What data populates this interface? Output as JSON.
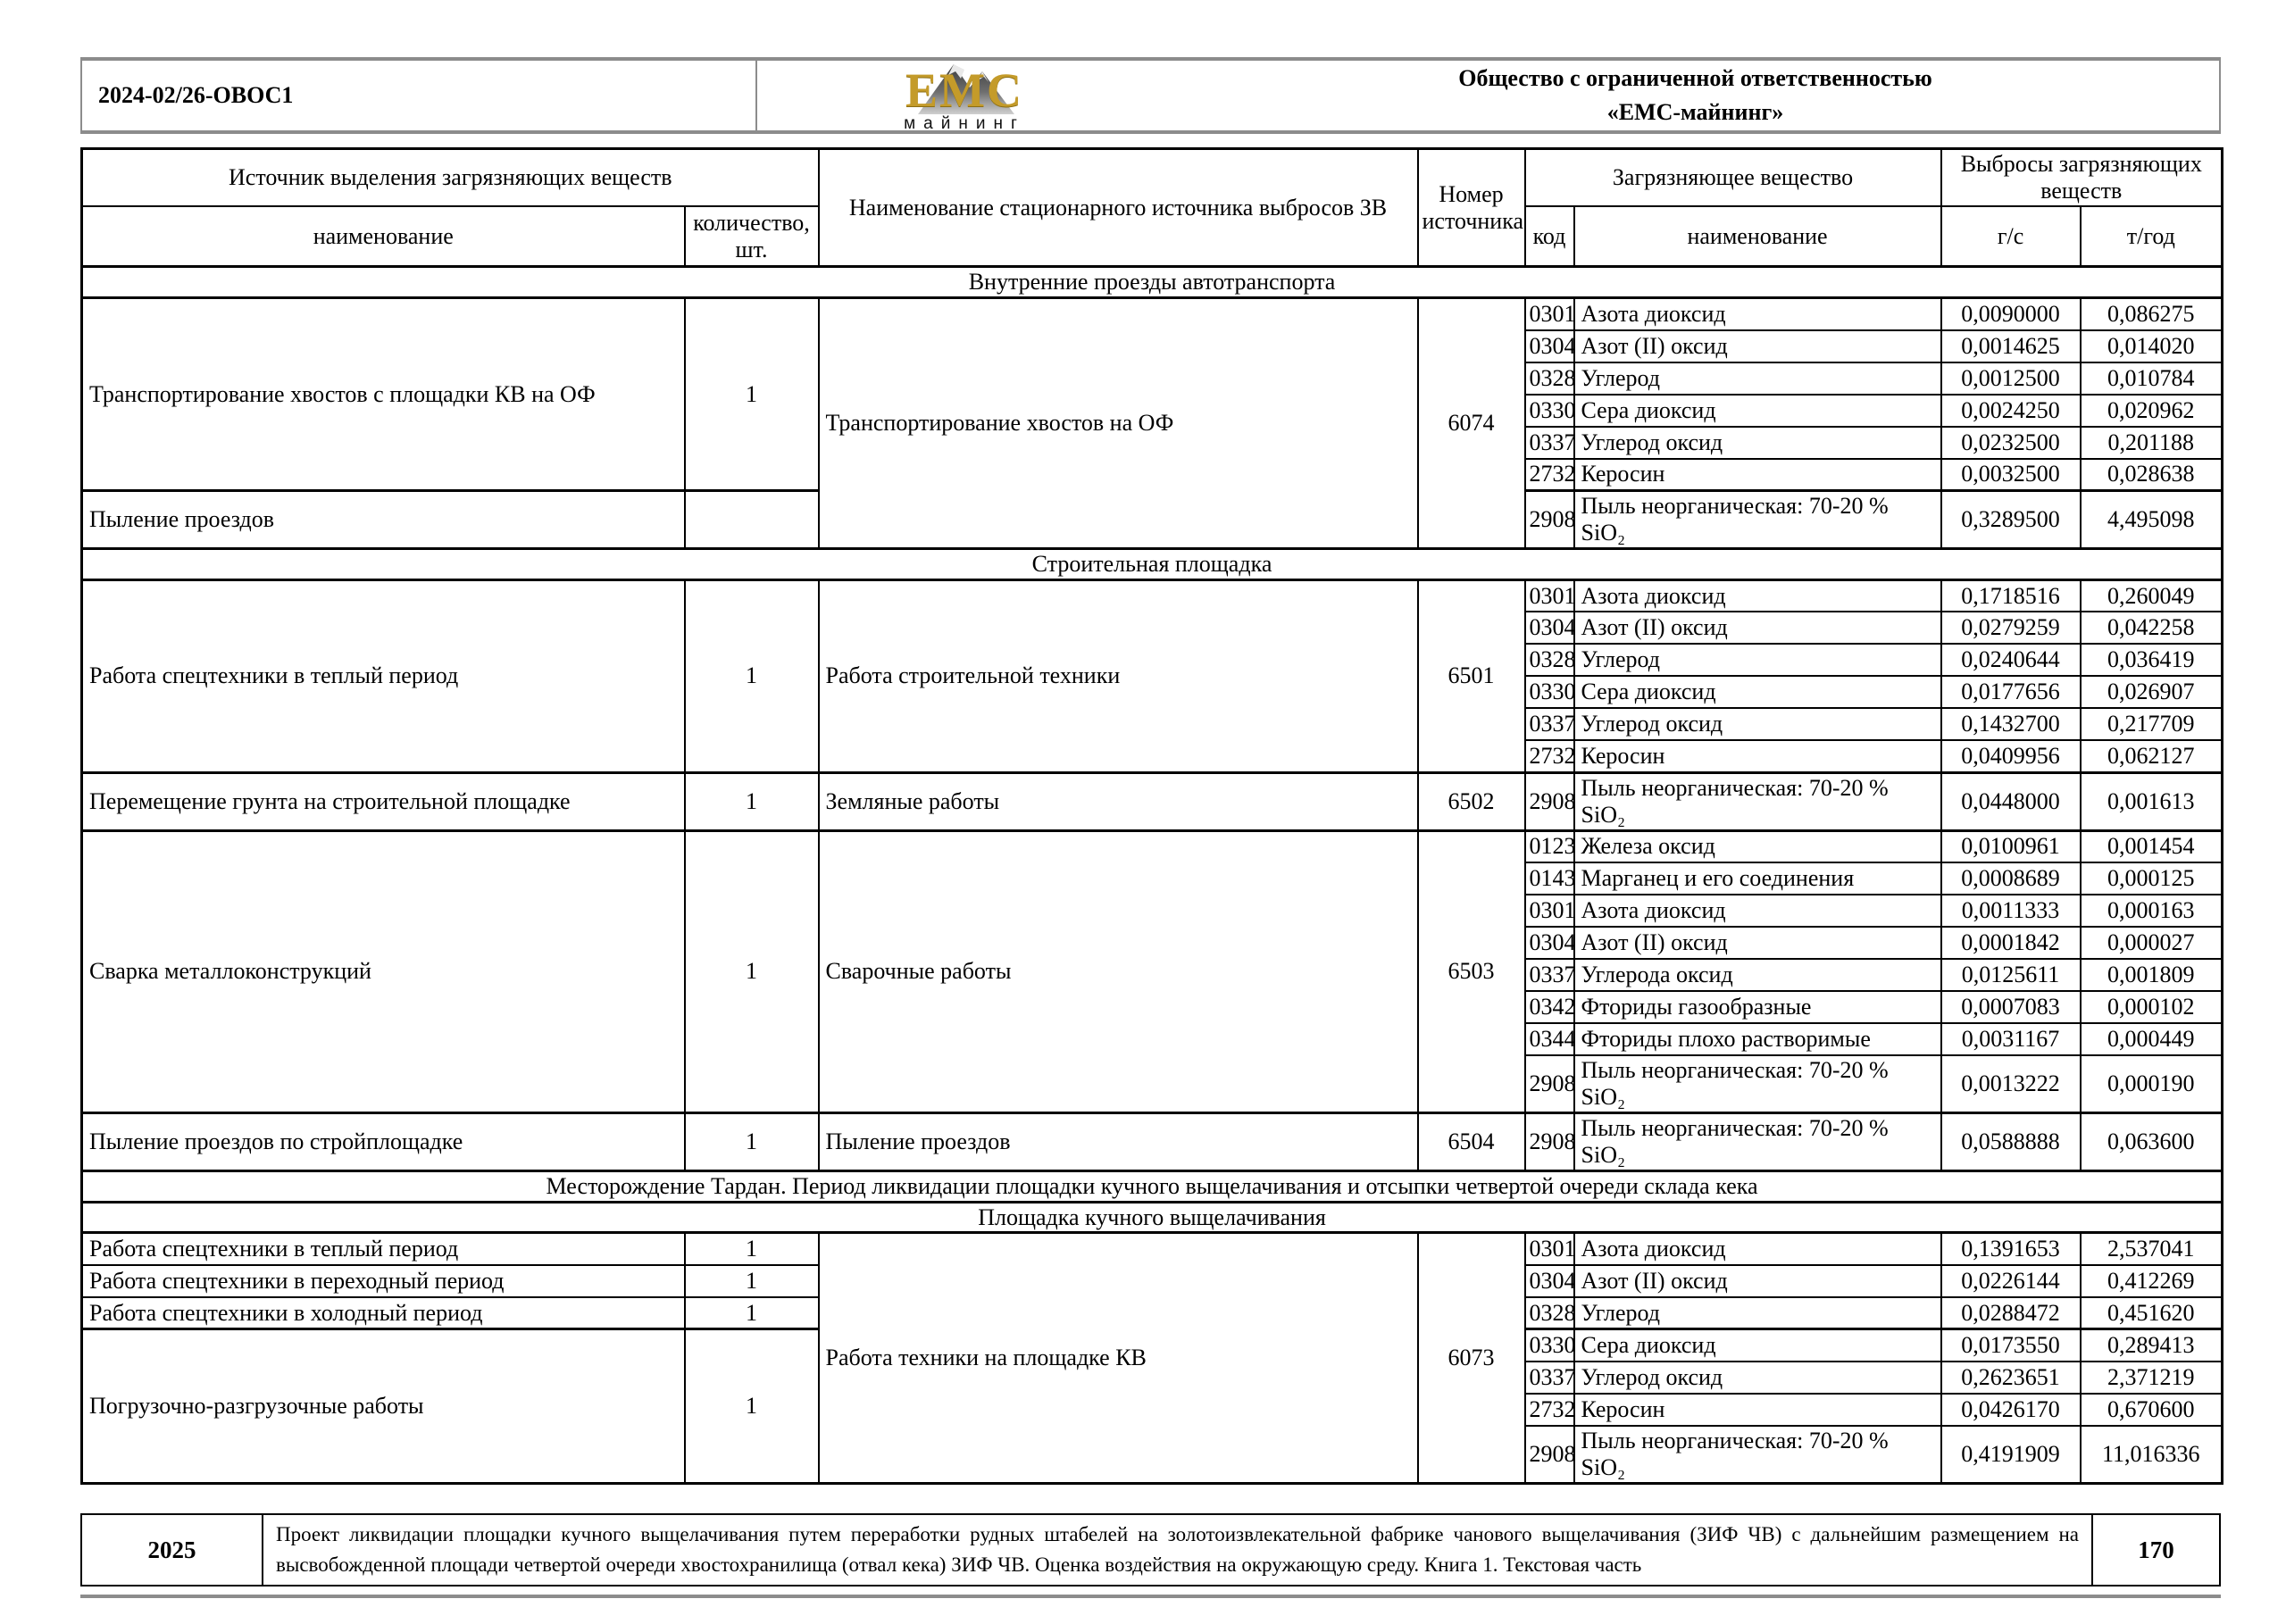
{
  "colors": {
    "logo-gold": "#C49B2A",
    "header-border": "#8C8C8C",
    "table-border": "#000000"
  },
  "header": {
    "doc_code": "2024-02/26-ОВОС1",
    "company_line1": "Общество с ограниченной ответственностью",
    "company_line2": "«ЕМС-майнинг»",
    "logo_text": "ЕМС",
    "logo_subtext": "майнинг"
  },
  "table": {
    "headers": {
      "source_group": "Источник выделения загрязняющих веществ",
      "source_name": "наименование",
      "source_count": "количество, шт.",
      "stationary": "Наименование стационарного источника выбросов ЗВ",
      "number": "Номер источника",
      "pollutant_group": "Загрязняющее вещество",
      "code": "код",
      "pollutant_name": "наименование",
      "emissions_group": "Выбросы загрязняющих веществ",
      "gs": "г/с",
      "tyear": "т/год"
    },
    "body_rows": [
      {
        "type": "section",
        "label": "Внутренние проезды автотранспорта"
      },
      {
        "type": "data",
        "cells": [
          {
            "t": "Транспортирование хвостов с площадки КВ на ОФ",
            "rs": 6,
            "cls": "left"
          },
          {
            "t": "1",
            "rs": 6
          },
          {
            "t": "Транспортирование хвостов на ОФ",
            "rs": 7,
            "cls": "left"
          },
          {
            "t": "6074",
            "rs": 7
          },
          {
            "t": "0301"
          },
          {
            "t": "Азота диоксид",
            "cls": "left"
          },
          {
            "t": "0,0090000"
          },
          {
            "t": "0,086275"
          }
        ]
      },
      {
        "type": "data",
        "cells": [
          {
            "t": "0304"
          },
          {
            "t": "Азот (II) оксид",
            "cls": "left"
          },
          {
            "t": "0,0014625"
          },
          {
            "t": "0,014020"
          }
        ]
      },
      {
        "type": "data",
        "cells": [
          {
            "t": "0328"
          },
          {
            "t": "Углерод",
            "cls": "left"
          },
          {
            "t": "0,0012500"
          },
          {
            "t": "0,010784"
          }
        ]
      },
      {
        "type": "data",
        "cells": [
          {
            "t": "0330"
          },
          {
            "t": "Сера диоксид",
            "cls": "left"
          },
          {
            "t": "0,0024250"
          },
          {
            "t": "0,020962"
          }
        ]
      },
      {
        "type": "data",
        "cells": [
          {
            "t": "0337"
          },
          {
            "t": "Углерод оксид",
            "cls": "left"
          },
          {
            "t": "0,0232500"
          },
          {
            "t": "0,201188"
          }
        ]
      },
      {
        "type": "data",
        "cells": [
          {
            "t": "2732"
          },
          {
            "t": "Керосин",
            "cls": "left"
          },
          {
            "t": "0,0032500"
          },
          {
            "t": "0,028638"
          }
        ]
      },
      {
        "type": "data",
        "hv": true,
        "cells": [
          {
            "t": "Пыление проездов",
            "cls": "left"
          },
          {
            "t": ""
          },
          {
            "t": "2908"
          },
          {
            "t": "Пыль неорганическая: 70-20 % SiO₂",
            "cls": "left"
          },
          {
            "t": "0,3289500"
          },
          {
            "t": "4,495098"
          }
        ]
      },
      {
        "type": "section",
        "label": "Строительная площадка"
      },
      {
        "type": "data",
        "cells": [
          {
            "t": "Работа спецтехники в теплый период",
            "rs": 6,
            "cls": "left"
          },
          {
            "t": "1",
            "rs": 6
          },
          {
            "t": "Работа строительной техники",
            "rs": 6,
            "cls": "left"
          },
          {
            "t": "6501",
            "rs": 6
          },
          {
            "t": "0301"
          },
          {
            "t": "Азота диоксид",
            "cls": "left"
          },
          {
            "t": "0,1718516"
          },
          {
            "t": "0,260049"
          }
        ]
      },
      {
        "type": "data",
        "cells": [
          {
            "t": "0304"
          },
          {
            "t": "Азот (II) оксид",
            "cls": "left"
          },
          {
            "t": "0,0279259"
          },
          {
            "t": "0,042258"
          }
        ]
      },
      {
        "type": "data",
        "cells": [
          {
            "t": "0328"
          },
          {
            "t": "Углерод",
            "cls": "left"
          },
          {
            "t": "0,0240644"
          },
          {
            "t": "0,036419"
          }
        ]
      },
      {
        "type": "data",
        "cells": [
          {
            "t": "0330"
          },
          {
            "t": "Сера диоксид",
            "cls": "left"
          },
          {
            "t": "0,0177656"
          },
          {
            "t": "0,026907"
          }
        ]
      },
      {
        "type": "data",
        "cells": [
          {
            "t": "0337"
          },
          {
            "t": "Углерод оксид",
            "cls": "left"
          },
          {
            "t": "0,1432700"
          },
          {
            "t": "0,217709"
          }
        ]
      },
      {
        "type": "data",
        "cells": [
          {
            "t": "2732"
          },
          {
            "t": "Керосин",
            "cls": "left"
          },
          {
            "t": "0,0409956"
          },
          {
            "t": "0,062127"
          }
        ]
      },
      {
        "type": "data",
        "hv": true,
        "cells": [
          {
            "t": "Перемещение грунта на строительной площадке",
            "cls": "left"
          },
          {
            "t": "1"
          },
          {
            "t": "Земляные работы",
            "cls": "left"
          },
          {
            "t": "6502"
          },
          {
            "t": "2908"
          },
          {
            "t": "Пыль неорганическая: 70-20 % SiO₂",
            "cls": "left"
          },
          {
            "t": "0,0448000"
          },
          {
            "t": "0,001613"
          }
        ]
      },
      {
        "type": "data",
        "hv": true,
        "cells": [
          {
            "t": "Сварка металлоконструкций",
            "rs": 8,
            "cls": "left"
          },
          {
            "t": "1",
            "rs": 8
          },
          {
            "t": "Сварочные работы",
            "rs": 8,
            "cls": "left"
          },
          {
            "t": "6503",
            "rs": 8
          },
          {
            "t": "0123"
          },
          {
            "t": "Железа оксид",
            "cls": "left"
          },
          {
            "t": "0,0100961"
          },
          {
            "t": "0,001454"
          }
        ]
      },
      {
        "type": "data",
        "cells": [
          {
            "t": "0143"
          },
          {
            "t": "Марганец и его соединения",
            "cls": "left"
          },
          {
            "t": "0,0008689"
          },
          {
            "t": "0,000125"
          }
        ]
      },
      {
        "type": "data",
        "cells": [
          {
            "t": "0301"
          },
          {
            "t": "Азота диоксид",
            "cls": "left"
          },
          {
            "t": "0,0011333"
          },
          {
            "t": "0,000163"
          }
        ]
      },
      {
        "type": "data",
        "cells": [
          {
            "t": "0304"
          },
          {
            "t": "Азот (II) оксид",
            "cls": "left"
          },
          {
            "t": "0,0001842"
          },
          {
            "t": "0,000027"
          }
        ]
      },
      {
        "type": "data",
        "cells": [
          {
            "t": "0337"
          },
          {
            "t": "Углерода оксид",
            "cls": "left"
          },
          {
            "t": "0,0125611"
          },
          {
            "t": "0,001809"
          }
        ]
      },
      {
        "type": "data",
        "cells": [
          {
            "t": "0342"
          },
          {
            "t": "Фториды газообразные",
            "cls": "left"
          },
          {
            "t": "0,0007083"
          },
          {
            "t": "0,000102"
          }
        ]
      },
      {
        "type": "data",
        "cells": [
          {
            "t": "0344"
          },
          {
            "t": "Фториды плохо растворимые",
            "cls": "left"
          },
          {
            "t": "0,0031167"
          },
          {
            "t": "0,000449"
          }
        ]
      },
      {
        "type": "data",
        "cells": [
          {
            "t": "2908"
          },
          {
            "t": "Пыль неорганическая: 70-20 % SiO₂",
            "cls": "left"
          },
          {
            "t": "0,0013222"
          },
          {
            "t": "0,000190"
          }
        ]
      },
      {
        "type": "data",
        "hv": true,
        "cells": [
          {
            "t": "Пыление проездов по стройплощадке",
            "cls": "left"
          },
          {
            "t": "1"
          },
          {
            "t": "Пыление проездов",
            "cls": "left"
          },
          {
            "t": "6504"
          },
          {
            "t": "2908"
          },
          {
            "t": "Пыль неорганическая: 70-20 % SiO₂",
            "cls": "left"
          },
          {
            "t": "0,0588888"
          },
          {
            "t": "0,063600"
          }
        ]
      },
      {
        "type": "section",
        "label": "Месторождение Тардан. Период ликвидации площадки кучного выщелачивания и отсыпки четвертой очереди склада кека"
      },
      {
        "type": "section",
        "label": "Площадка кучного выщелачивания"
      },
      {
        "type": "data",
        "cells": [
          {
            "t": "Работа спецтехники в теплый период",
            "cls": "left"
          },
          {
            "t": "1"
          },
          {
            "t": "Работа техники на площадке КВ",
            "rs": 7,
            "cls": "left"
          },
          {
            "t": "6073",
            "rs": 7
          },
          {
            "t": "0301"
          },
          {
            "t": "Азота диоксид",
            "cls": "left"
          },
          {
            "t": "0,1391653"
          },
          {
            "t": "2,537041"
          }
        ]
      },
      {
        "type": "data",
        "cells": [
          {
            "t": "Работа спецтехники в переходный период",
            "cls": "left"
          },
          {
            "t": "1"
          },
          {
            "t": "0304"
          },
          {
            "t": "Азот (II) оксид",
            "cls": "left"
          },
          {
            "t": "0,0226144"
          },
          {
            "t": "0,412269"
          }
        ]
      },
      {
        "type": "data",
        "cells": [
          {
            "t": "Работа спецтехники в холодный период",
            "cls": "left"
          },
          {
            "t": "1"
          },
          {
            "t": "0328"
          },
          {
            "t": "Углерод",
            "cls": "left"
          },
          {
            "t": "0,0288472"
          },
          {
            "t": "0,451620"
          }
        ]
      },
      {
        "type": "data",
        "hv": true,
        "cells": [
          {
            "t": "Погрузочно-разгрузочные работы",
            "rs": 4,
            "cls": "left"
          },
          {
            "t": "1",
            "rs": 4
          },
          {
            "t": "0330"
          },
          {
            "t": "Сера диоксид",
            "cls": "left"
          },
          {
            "t": "0,0173550"
          },
          {
            "t": "0,289413"
          }
        ]
      },
      {
        "type": "data",
        "cells": [
          {
            "t": "0337"
          },
          {
            "t": "Углерод оксид",
            "cls": "left"
          },
          {
            "t": "0,2623651"
          },
          {
            "t": "2,371219"
          }
        ]
      },
      {
        "type": "data",
        "cells": [
          {
            "t": "2732"
          },
          {
            "t": "Керосин",
            "cls": "left"
          },
          {
            "t": "0,0426170"
          },
          {
            "t": "0,670600"
          }
        ]
      },
      {
        "type": "data",
        "cells": [
          {
            "t": "2908"
          },
          {
            "t": "Пыль неорганическая: 70-20 % SiO₂",
            "cls": "left"
          },
          {
            "t": "0,4191909"
          },
          {
            "t": "11,016336"
          }
        ]
      }
    ]
  },
  "footer": {
    "year": "2025",
    "description": "Проект ликвидации площадки кучного выщелачивания путем переработки рудных штабелей на золотоизвлекательной фабрике чанового выщелачивания (ЗИФ ЧВ) с дальнейшим размещением на высвобожденной площади четвертой очереди хвостохранилища (отвал кека) ЗИФ ЧВ. Оценка воздействия на окружающую среду. Книга 1. Текстовая часть",
    "page_number": "170"
  }
}
